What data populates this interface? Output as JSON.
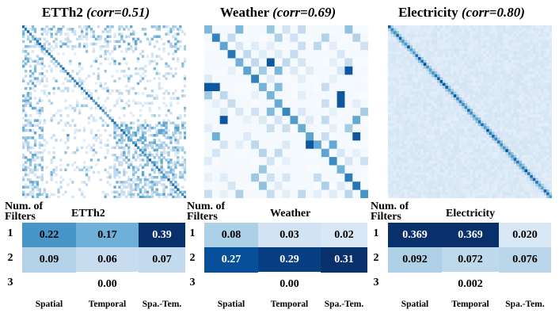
{
  "chart_data": [
    {
      "type": "heatmap",
      "title": "ETTh2",
      "title_suffix": "(corr=0.51)",
      "table": {
        "row_header": [
          "Num. of",
          "Filters"
        ],
        "name": "ETTh2",
        "rows": [
          "1",
          "2",
          "3"
        ],
        "columns": [
          "Spatial",
          "Temporal",
          "Spa.-Tem."
        ],
        "values": [
          [
            "0.22",
            "0.17",
            "0.39"
          ],
          [
            "0.09",
            "0.06",
            "0.07"
          ],
          [
            "",
            "0.00",
            ""
          ]
        ]
      }
    },
    {
      "type": "heatmap",
      "title": "Weather",
      "title_suffix": "(corr=0.69)",
      "table": {
        "row_header": [
          "Num. of",
          "Filters"
        ],
        "name": "Weather",
        "rows": [
          "1",
          "2",
          "3"
        ],
        "columns": [
          "Spatial",
          "Temporal",
          "Spa.-Tem."
        ],
        "values": [
          [
            "0.08",
            "0.03",
            "0.02"
          ],
          [
            "0.27",
            "0.29",
            "0.31"
          ],
          [
            "",
            "0.00",
            ""
          ]
        ]
      }
    },
    {
      "type": "heatmap",
      "title": "Electricity",
      "title_suffix": "(corr=0.80)",
      "table": {
        "row_header": [
          "Num. of",
          "Filters"
        ],
        "name": "Electricity",
        "rows": [
          "1",
          "2",
          "3"
        ],
        "columns": [
          "Spatial",
          "Temporal",
          "Spa.-Tem."
        ],
        "values": [
          [
            "0.369",
            "0.369",
            "0.020"
          ],
          [
            "0.092",
            "0.072",
            "0.076"
          ],
          [
            "",
            "0.002",
            ""
          ]
        ]
      }
    }
  ],
  "colors": {
    "colormap": "Blues",
    "low": "#f7fbff",
    "high": "#08306b"
  }
}
